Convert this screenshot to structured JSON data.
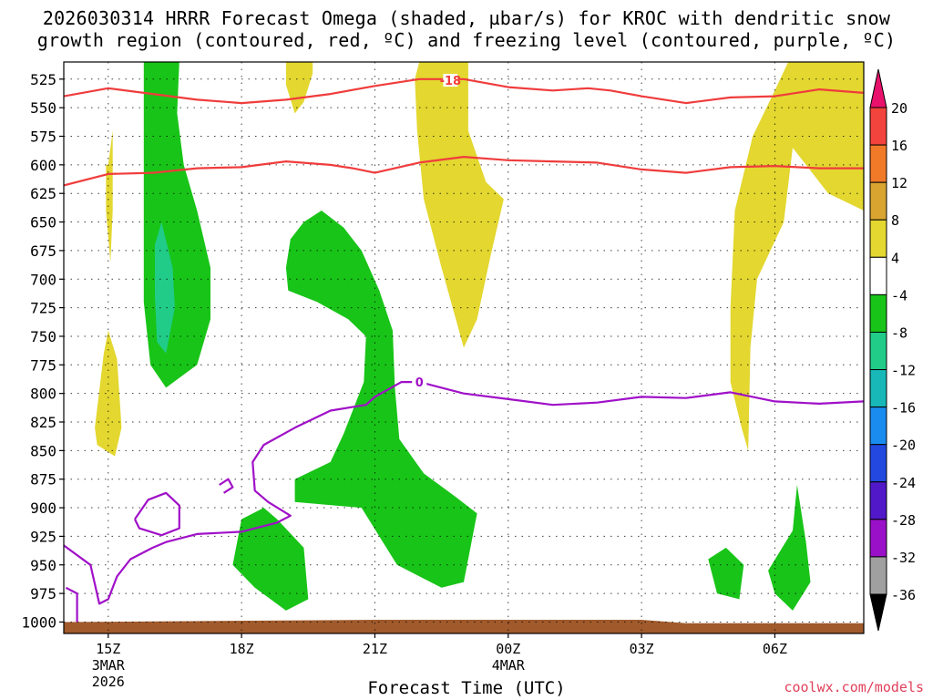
{
  "title_line1": "2026030314 HRRR Forecast Omega (shaded, µbar/s) for KROC with dendritic snow",
  "title_line2": "growth region (contoured, red, ºC) and freezing level (contoured, purple, ºC)",
  "x_axis_label": "Forecast Time (UTC)",
  "credit": "coolwx.com/models",
  "chart_data": {
    "type": "time-height cross section (filled contours)",
    "variable": "Omega (µbar/s)",
    "x": {
      "start_hour": 14,
      "end_hour": 32,
      "unit": "hours UTC since 00Z 3 Mar 2026"
    },
    "y": {
      "levels": [
        525,
        550,
        575,
        600,
        625,
        650,
        675,
        700,
        725,
        750,
        775,
        800,
        825,
        850,
        875,
        900,
        925,
        950,
        975,
        1000
      ],
      "range": [
        510,
        1010
      ],
      "unit": "hPa"
    },
    "x_ticks": [
      {
        "hour": 15,
        "label": "15Z",
        "sub1": "3MAR",
        "sub2": "2026"
      },
      {
        "hour": 18,
        "label": "18Z"
      },
      {
        "hour": 21,
        "label": "21Z"
      },
      {
        "hour": 24,
        "label": "00Z",
        "sub1": "4MAR"
      },
      {
        "hour": 27,
        "label": "03Z"
      },
      {
        "hour": 30,
        "label": "06Z"
      }
    ],
    "colorbar": {
      "labels": [
        "20",
        "16",
        "12",
        "8",
        "4",
        "-4",
        "-8",
        "-12",
        "-16",
        "-20",
        "-24",
        "-28",
        "-32",
        "-36"
      ],
      "colors": [
        "#e8116b",
        "#f2433c",
        "#f07a28",
        "#d9a530",
        "#e3d730",
        "#ffffff",
        "#18c418",
        "#20cc88",
        "#18b8b8",
        "#1a8cf0",
        "#2248e0",
        "#5018c8",
        "#9a10c8",
        "#a0a0a0",
        "#000000"
      ]
    },
    "shading": [
      {
        "level": "4 to 8",
        "color": "#e3d730",
        "pts": [
          [
            15,
            600
          ],
          [
            15.1,
            570
          ],
          [
            15.1,
            640
          ],
          [
            15.05,
            685
          ],
          [
            14.95,
            640
          ],
          [
            14.95,
            600
          ]
        ]
      },
      {
        "level": "4 to 8",
        "color": "#e3d730",
        "pts": [
          [
            14.7,
            830
          ],
          [
            14.9,
            765
          ],
          [
            15,
            745
          ],
          [
            15.2,
            770
          ],
          [
            15.3,
            830
          ],
          [
            15.15,
            855
          ],
          [
            14.75,
            845
          ]
        ]
      },
      {
        "level": "4 to 8",
        "color": "#e3d730",
        "pts": [
          [
            19.0,
            510
          ],
          [
            19.6,
            510
          ],
          [
            19.6,
            520
          ],
          [
            19.4,
            545
          ],
          [
            19.2,
            555
          ],
          [
            19.0,
            530
          ]
        ]
      },
      {
        "level": "4 to 8",
        "color": "#e3d730",
        "pts": [
          [
            21.9,
            525
          ],
          [
            22.0,
            510
          ],
          [
            23.1,
            510
          ],
          [
            23.1,
            570
          ],
          [
            23.5,
            615
          ],
          [
            23.9,
            630
          ],
          [
            23.6,
            680
          ],
          [
            23.3,
            735
          ],
          [
            23.0,
            760
          ],
          [
            22.5,
            690
          ],
          [
            22.1,
            630
          ],
          [
            21.95,
            570
          ]
        ]
      },
      {
        "level": "4 to 8",
        "color": "#e3d730",
        "pts": [
          [
            29.0,
            725
          ],
          [
            29.1,
            640
          ],
          [
            29.5,
            575
          ],
          [
            30.0,
            535
          ],
          [
            30.3,
            510
          ],
          [
            32,
            510
          ],
          [
            32,
            640
          ],
          [
            31.2,
            625
          ],
          [
            30.4,
            585
          ],
          [
            30.2,
            650
          ],
          [
            29.6,
            700
          ],
          [
            29.45,
            760
          ],
          [
            29.4,
            850
          ],
          [
            29.25,
            830
          ],
          [
            29.0,
            790
          ]
        ]
      },
      {
        "level": "-4 to -8",
        "color": "#18c418",
        "pts": [
          [
            15.8,
            520
          ],
          [
            15.8,
            510
          ],
          [
            16.6,
            510
          ],
          [
            16.55,
            555
          ],
          [
            16.7,
            600
          ],
          [
            17.0,
            640
          ],
          [
            17.3,
            690
          ],
          [
            17.3,
            735
          ],
          [
            17.0,
            775
          ],
          [
            16.3,
            795
          ],
          [
            15.95,
            775
          ],
          [
            15.8,
            720
          ],
          [
            15.8,
            640
          ]
        ]
      },
      {
        "level": "-4 to -8",
        "color": "#18c418",
        "pts": [
          [
            19.0,
            690
          ],
          [
            19.1,
            665
          ],
          [
            19.4,
            650
          ],
          [
            19.8,
            640
          ],
          [
            20.3,
            655
          ],
          [
            20.7,
            675
          ],
          [
            21.1,
            710
          ],
          [
            21.4,
            745
          ],
          [
            21.45,
            795
          ],
          [
            21.55,
            840
          ],
          [
            22.1,
            870
          ],
          [
            22.8,
            890
          ],
          [
            23.3,
            905
          ],
          [
            23.0,
            965
          ],
          [
            22.5,
            970
          ],
          [
            21.5,
            950
          ],
          [
            20.7,
            900
          ],
          [
            19.2,
            895
          ],
          [
            19.2,
            875
          ],
          [
            20.0,
            860
          ],
          [
            20.3,
            835
          ],
          [
            20.75,
            790
          ],
          [
            20.8,
            750
          ],
          [
            20.4,
            735
          ],
          [
            19.7,
            720
          ],
          [
            19.05,
            710
          ]
        ]
      },
      {
        "level": "-4 to -8",
        "color": "#18c418",
        "pts": [
          [
            17.8,
            950
          ],
          [
            18.0,
            910
          ],
          [
            18.5,
            900
          ],
          [
            18.8,
            910
          ],
          [
            19.4,
            935
          ],
          [
            19.5,
            980
          ],
          [
            19.0,
            990
          ],
          [
            18.3,
            970
          ]
        ]
      },
      {
        "level": "-4 to -8",
        "color": "#18c418",
        "pts": [
          [
            28.5,
            945
          ],
          [
            28.9,
            935
          ],
          [
            29.3,
            950
          ],
          [
            29.2,
            980
          ],
          [
            28.7,
            975
          ]
        ]
      },
      {
        "level": "-4 to -8",
        "color": "#18c418",
        "pts": [
          [
            29.85,
            955
          ],
          [
            30.4,
            920
          ],
          [
            30.5,
            880
          ],
          [
            30.7,
            930
          ],
          [
            30.8,
            965
          ],
          [
            30.4,
            990
          ],
          [
            30.0,
            975
          ]
        ]
      },
      {
        "level": "-8 to -12",
        "color": "#20cc88",
        "pts": [
          [
            16.05,
            670
          ],
          [
            16.2,
            650
          ],
          [
            16.45,
            690
          ],
          [
            16.5,
            725
          ],
          [
            16.3,
            765
          ],
          [
            16.1,
            755
          ],
          [
            16.05,
            715
          ]
        ]
      },
      {
        "level": "ground",
        "color": "#a05a2c",
        "pts": [
          [
            14,
            1000
          ],
          [
            21,
            998
          ],
          [
            27,
            998
          ],
          [
            28,
            1001
          ],
          [
            32,
            1001
          ],
          [
            32,
            1012
          ],
          [
            14,
            1012
          ]
        ]
      }
    ],
    "contours": [
      {
        "name": "dendritic growth -18°C (upper)",
        "color": "#f03c3c",
        "label": "-18",
        "label_at": [
          22.7,
          526
        ],
        "pts": [
          [
            14,
            540
          ],
          [
            15,
            533
          ],
          [
            16,
            538
          ],
          [
            17,
            543
          ],
          [
            18,
            546
          ],
          [
            19,
            543
          ],
          [
            20,
            538
          ],
          [
            21,
            531
          ],
          [
            22,
            525
          ],
          [
            23,
            525
          ],
          [
            24,
            532
          ],
          [
            25,
            535
          ],
          [
            25.8,
            533
          ],
          [
            26.3,
            535
          ],
          [
            27,
            540
          ],
          [
            28,
            546
          ],
          [
            29,
            541
          ],
          [
            30,
            540
          ],
          [
            31,
            534
          ],
          [
            32,
            537
          ]
        ]
      },
      {
        "name": "dendritic growth -12°C (lower)",
        "color": "#f03c3c",
        "label": "",
        "pts": [
          [
            14,
            618
          ],
          [
            15,
            608
          ],
          [
            16,
            607
          ],
          [
            17,
            603
          ],
          [
            18,
            602
          ],
          [
            19,
            597
          ],
          [
            20,
            600
          ],
          [
            20.5,
            603
          ],
          [
            21,
            607
          ],
          [
            22,
            598
          ],
          [
            23,
            593
          ],
          [
            24,
            596
          ],
          [
            25,
            597
          ],
          [
            26,
            598
          ],
          [
            27,
            604
          ],
          [
            28,
            607
          ],
          [
            29,
            602
          ],
          [
            30,
            601
          ],
          [
            31,
            603
          ],
          [
            32,
            603
          ]
        ]
      },
      {
        "name": "freezing level 0°C",
        "color": "#a010c8",
        "label": "0",
        "label_at": [
          22,
          790
        ],
        "pts": [
          [
            14,
            933
          ],
          [
            14.6,
            950
          ],
          [
            14.8,
            984
          ],
          [
            15.0,
            980
          ],
          [
            15.2,
            960
          ],
          [
            15.5,
            945
          ],
          [
            16,
            935
          ],
          [
            16.3,
            930
          ],
          [
            17,
            923
          ],
          [
            18,
            921
          ],
          [
            18.8,
            913
          ],
          [
            19.1,
            907
          ],
          [
            18.6,
            895
          ],
          [
            18.3,
            885
          ],
          [
            18.25,
            860
          ],
          [
            18.5,
            845
          ],
          [
            19.2,
            830
          ],
          [
            20,
            815
          ],
          [
            20.8,
            810
          ],
          [
            21,
            803
          ],
          [
            21.6,
            790
          ],
          [
            22,
            790
          ],
          [
            23,
            800
          ],
          [
            24,
            805
          ],
          [
            25,
            810
          ],
          [
            26,
            808
          ],
          [
            27,
            803
          ],
          [
            28,
            804
          ],
          [
            29,
            799
          ],
          [
            30,
            807
          ],
          [
            31,
            809
          ],
          [
            32,
            807
          ]
        ]
      },
      {
        "name": "freezing level 0°C (loop)",
        "color": "#a010c8",
        "label": "",
        "pts": [
          [
            15.6,
            910
          ],
          [
            15.9,
            893
          ],
          [
            16.3,
            887
          ],
          [
            16.6,
            898
          ],
          [
            16.6,
            918
          ],
          [
            16.2,
            924
          ],
          [
            15.7,
            918
          ],
          [
            15.6,
            910
          ]
        ]
      },
      {
        "name": "freezing level 0°C (small)",
        "color": "#a010c8",
        "label": "",
        "pts": [
          [
            17.5,
            880
          ],
          [
            17.7,
            875
          ],
          [
            17.8,
            882
          ],
          [
            17.6,
            887
          ]
        ]
      },
      {
        "name": "freezing level 0°C (left edge)",
        "color": "#a010c8",
        "label": "",
        "pts": [
          [
            14.05,
            970
          ],
          [
            14.3,
            975
          ],
          [
            14.3,
            1000
          ]
        ]
      }
    ]
  }
}
